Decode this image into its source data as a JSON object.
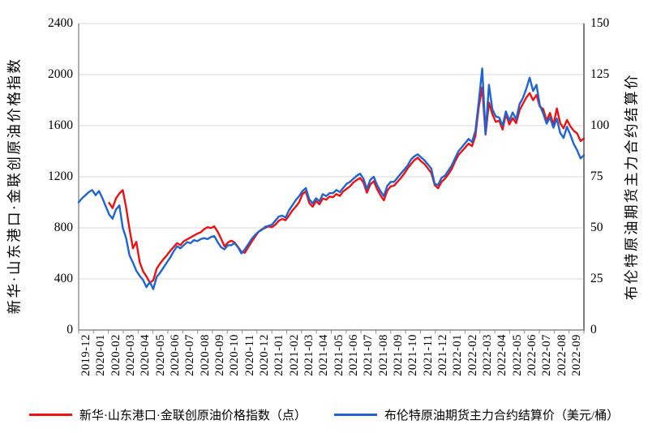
{
  "chart_data": {
    "type": "line",
    "title": "",
    "grid": "horizontal",
    "legend_position": "bottom",
    "background": "#ffffff",
    "gridline_color": "#d9d9d9",
    "axis_color": "#8c8c8c",
    "x_tick_labels": [
      "2019-12",
      "2020-01",
      "2020-02",
      "2020-03",
      "2020-04",
      "2020-05",
      "2020-06",
      "2020-07",
      "2020-08",
      "2020-09",
      "2020-10",
      "2020-11",
      "2020-12",
      "2021-01",
      "2021-02",
      "2021-03",
      "2021-04",
      "2021-05",
      "2021-06",
      "2021-07",
      "2021-08",
      "2021-09",
      "2021-10",
      "2021-11",
      "2021-12",
      "2022-01",
      "2022-02",
      "2022-03",
      "2022-04",
      "2022-05",
      "2022-06",
      "2022-07",
      "2022-08",
      "2022-09"
    ],
    "axes": {
      "left": {
        "title": "新华·山东港口·金联创原油价格指数",
        "ticks": [
          2400,
          2000,
          1600,
          1200,
          800,
          400,
          0
        ],
        "range": [
          0,
          2400
        ]
      },
      "right": {
        "title": "布伦特原油期货主力合约结算价",
        "ticks": [
          150,
          125,
          100,
          75,
          50,
          25,
          0
        ],
        "range": [
          0,
          150
        ]
      }
    },
    "series": [
      {
        "name": "新华·山东港口·金联创原油价格指数（点）",
        "axis": "left",
        "color": "#ee1111",
        "start_index": 9,
        "values": [
          995,
          955,
          1030,
          1070,
          1095,
          960,
          790,
          640,
          690,
          530,
          460,
          420,
          370,
          390,
          480,
          520,
          555,
          585,
          620,
          650,
          680,
          665,
          695,
          710,
          725,
          740,
          755,
          765,
          790,
          805,
          798,
          812,
          770,
          715,
          655,
          685,
          700,
          685,
          650,
          612,
          605,
          648,
          690,
          730,
          768,
          788,
          800,
          812,
          805,
          825,
          855,
          870,
          860,
          895,
          935,
          965,
          1000,
          1065,
          1085,
          995,
          965,
          1010,
          985,
          1030,
          1020,
          1045,
          1040,
          1065,
          1050,
          1085,
          1105,
          1125,
          1155,
          1175,
          1190,
          1155,
          1075,
          1140,
          1165,
          1105,
          1055,
          1015,
          1090,
          1125,
          1130,
          1160,
          1190,
          1225,
          1265,
          1300,
          1330,
          1350,
          1320,
          1300,
          1265,
          1230,
          1135,
          1110,
          1160,
          1185,
          1220,
          1260,
          1320,
          1370,
          1400,
          1430,
          1460,
          1440,
          1520,
          1750,
          1900,
          1530,
          1780,
          1690,
          1630,
          1640,
          1570,
          1690,
          1610,
          1660,
          1620,
          1720,
          1770,
          1820,
          1855,
          1800,
          1840,
          1750,
          1730,
          1640,
          1700,
          1605,
          1735,
          1620,
          1580,
          1645,
          1595,
          1560,
          1540,
          1480,
          1500
        ]
      },
      {
        "name": "布伦特原油期货主力合约结算价（美元/桶）",
        "axis": "right",
        "color": "#1e64d2",
        "start_index": 0,
        "values": [
          62.5,
          64.5,
          66,
          67.5,
          68.5,
          66,
          68,
          64.5,
          60.5,
          56.5,
          54.5,
          59,
          61,
          50,
          45,
          36.5,
          33,
          29,
          26.5,
          24.5,
          21,
          23.5,
          20,
          26,
          28,
          30.5,
          33,
          35.5,
          38.5,
          41,
          40,
          41.5,
          43,
          42.5,
          44,
          43.5,
          44.5,
          45,
          44.5,
          45.5,
          46,
          43,
          40.5,
          39.5,
          41.5,
          41.5,
          42.5,
          40.5,
          37.5,
          39.5,
          42,
          44.5,
          46.5,
          48,
          49,
          50.5,
          51,
          51.5,
          53.5,
          55.5,
          56,
          55,
          58.5,
          61,
          63.5,
          65.5,
          68,
          69.5,
          64,
          62,
          64.5,
          63,
          66.5,
          65.5,
          67,
          67,
          68.5,
          67.5,
          69.5,
          71.5,
          72.5,
          74,
          75.5,
          76.5,
          74,
          69,
          73.5,
          75,
          71,
          68,
          65.5,
          70.5,
          72.5,
          72.5,
          74.5,
          76.5,
          78.5,
          80.5,
          83.5,
          85,
          86,
          84.5,
          83,
          81,
          79,
          71.5,
          71,
          74.5,
          75.5,
          78,
          80.5,
          84,
          87.5,
          89.5,
          91.5,
          93.5,
          92,
          97.5,
          112,
          128,
          96,
          120,
          108,
          104.5,
          104,
          100,
          107,
          102.5,
          106.5,
          103,
          110.5,
          113.5,
          118,
          123.5,
          117,
          120,
          110,
          106,
          101,
          104,
          99,
          103.5,
          96.5,
          94,
          99.5,
          95.5,
          91,
          88,
          84,
          85.5
        ]
      }
    ]
  }
}
